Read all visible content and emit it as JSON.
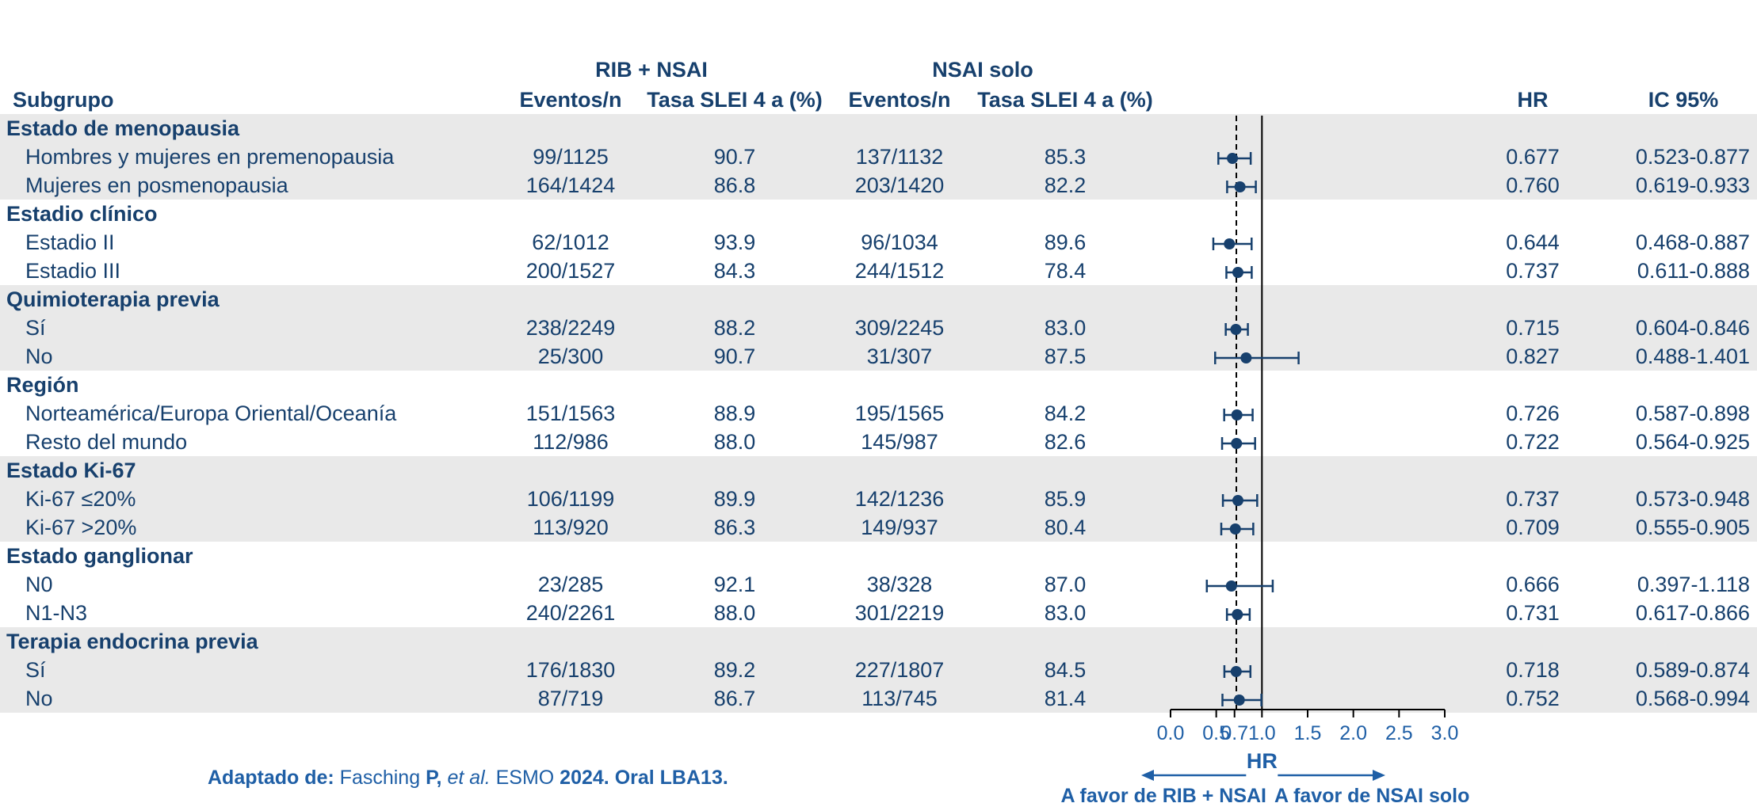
{
  "headers": {
    "group_rib": "RIB + NSAI",
    "group_nsai": "NSAI solo",
    "subgroup": "Subgrupo",
    "events_rib": "Eventos/n",
    "rate_rib": "Tasa SLEI 4 a (%)",
    "events_nsai": "Eventos/n",
    "rate_nsai": "Tasa SLEI 4 a (%)",
    "hr": "HR",
    "ci": "IC 95%"
  },
  "rows": [
    {
      "type": "group",
      "label": "Estado de menopausia"
    },
    {
      "type": "item",
      "label": "Hombres y mujeres en premenopausia",
      "ev_rib": "99/1125",
      "rate_rib": "90.7",
      "ev_nsai": "137/1132",
      "rate_nsai": "85.3",
      "hr": "0.677",
      "ci": "0.523-0.877"
    },
    {
      "type": "item",
      "label": "Mujeres en posmenopausia",
      "ev_rib": "164/1424",
      "rate_rib": "86.8",
      "ev_nsai": "203/1420",
      "rate_nsai": "82.2",
      "hr": "0.760",
      "ci": "0.619-0.933"
    },
    {
      "type": "group",
      "label": "Estadio clínico"
    },
    {
      "type": "item",
      "label": "Estadio II",
      "ev_rib": "62/1012",
      "rate_rib": "93.9",
      "ev_nsai": "96/1034",
      "rate_nsai": "89.6",
      "hr": "0.644",
      "ci": "0.468-0.887"
    },
    {
      "type": "item",
      "label": "Estadio III",
      "ev_rib": "200/1527",
      "rate_rib": "84.3",
      "ev_nsai": "244/1512",
      "rate_nsai": "78.4",
      "hr": "0.737",
      "ci": "0.611-0.888"
    },
    {
      "type": "group",
      "label": "Quimioterapia previa"
    },
    {
      "type": "item",
      "label": "Sí",
      "ev_rib": "238/2249",
      "rate_rib": "88.2",
      "ev_nsai": "309/2245",
      "rate_nsai": "83.0",
      "hr": "0.715",
      "ci": "0.604-0.846"
    },
    {
      "type": "item",
      "label": "No",
      "ev_rib": "25/300",
      "rate_rib": "90.7",
      "ev_nsai": "31/307",
      "rate_nsai": "87.5",
      "hr": "0.827",
      "ci": "0.488-1.401"
    },
    {
      "type": "group",
      "label": "Región"
    },
    {
      "type": "item",
      "label": "Norteamérica/Europa Oriental/Oceanía",
      "ev_rib": "151/1563",
      "rate_rib": "88.9",
      "ev_nsai": "195/1565",
      "rate_nsai": "84.2",
      "hr": "0.726",
      "ci": "0.587-0.898"
    },
    {
      "type": "item",
      "label": "Resto del mundo",
      "ev_rib": "112/986",
      "rate_rib": "88.0",
      "ev_nsai": "145/987",
      "rate_nsai": "82.6",
      "hr": "0.722",
      "ci": "0.564-0.925"
    },
    {
      "type": "group",
      "label": "Estado Ki-67"
    },
    {
      "type": "item",
      "label": "Ki-67 ≤20%",
      "ev_rib": "106/1199",
      "rate_rib": "89.9",
      "ev_nsai": "142/1236",
      "rate_nsai": "85.9",
      "hr": "0.737",
      "ci": "0.573-0.948"
    },
    {
      "type": "item",
      "label": "Ki-67 >20%",
      "ev_rib": "113/920",
      "rate_rib": "86.3",
      "ev_nsai": "149/937",
      "rate_nsai": "80.4",
      "hr": "0.709",
      "ci": "0.555-0.905"
    },
    {
      "type": "group",
      "label": "Estado ganglionar"
    },
    {
      "type": "item",
      "label": "N0",
      "ev_rib": "23/285",
      "rate_rib": "92.1",
      "ev_nsai": "38/328",
      "rate_nsai": "87.0",
      "hr": "0.666",
      "ci": "0.397-1.118"
    },
    {
      "type": "item",
      "label": "N1-N3",
      "ev_rib": "240/2261",
      "rate_rib": "88.0",
      "ev_nsai": "301/2219",
      "rate_nsai": "83.0",
      "hr": "0.731",
      "ci": "0.617-0.866"
    },
    {
      "type": "group",
      "label": "Terapia endocrina previa"
    },
    {
      "type": "item",
      "label": "Sí",
      "ev_rib": "176/1830",
      "rate_rib": "89.2",
      "ev_nsai": "227/1807",
      "rate_nsai": "84.5",
      "hr": "0.718",
      "ci": "0.589-0.874"
    },
    {
      "type": "item",
      "label": "No",
      "ev_rib": "87/719",
      "rate_rib": "86.7",
      "ev_nsai": "113/745",
      "rate_nsai": "81.4",
      "hr": "0.752",
      "ci": "0.568-0.994"
    }
  ],
  "chart_data": {
    "type": "forest",
    "x_ticks": [
      "0.0",
      "0.5",
      "0.7",
      "1.0",
      "1.5",
      "2.0",
      "2.5",
      "3.0"
    ],
    "xlim": [
      0,
      3
    ],
    "reference_line": 1.0,
    "overall_hr_line": 0.72,
    "xlabel": "HR",
    "favor_left": "A favor de RIB + NSAI",
    "favor_right": "A favor de NSAI solo",
    "series": [
      {
        "label": "Hombres y mujeres en premenopausia",
        "hr": 0.677,
        "lo": 0.523,
        "hi": 0.877
      },
      {
        "label": "Mujeres en posmenopausia",
        "hr": 0.76,
        "lo": 0.619,
        "hi": 0.933
      },
      {
        "label": "Estadio II",
        "hr": 0.644,
        "lo": 0.468,
        "hi": 0.887
      },
      {
        "label": "Estadio III",
        "hr": 0.737,
        "lo": 0.611,
        "hi": 0.888
      },
      {
        "label": "Sí",
        "hr": 0.715,
        "lo": 0.604,
        "hi": 0.846
      },
      {
        "label": "No",
        "hr": 0.827,
        "lo": 0.488,
        "hi": 1.401
      },
      {
        "label": "Norteamérica/Europa Oriental/Oceanía",
        "hr": 0.726,
        "lo": 0.587,
        "hi": 0.898
      },
      {
        "label": "Resto del mundo",
        "hr": 0.722,
        "lo": 0.564,
        "hi": 0.925
      },
      {
        "label": "Ki-67 ≤20%",
        "hr": 0.737,
        "lo": 0.573,
        "hi": 0.948
      },
      {
        "label": "Ki-67 >20%",
        "hr": 0.709,
        "lo": 0.555,
        "hi": 0.905
      },
      {
        "label": "N0",
        "hr": 0.666,
        "lo": 0.397,
        "hi": 1.118
      },
      {
        "label": "N1-N3",
        "hr": 0.731,
        "lo": 0.617,
        "hi": 0.866
      },
      {
        "label": "Sí",
        "hr": 0.718,
        "lo": 0.589,
        "hi": 0.874
      },
      {
        "label": "No",
        "hr": 0.752,
        "lo": 0.568,
        "hi": 0.994
      }
    ],
    "colors": {
      "marker": "#17406d",
      "axis": "#1f5fa6"
    }
  },
  "footer": {
    "prefix": "Adaptado de:",
    "author": "Fasching",
    "initial": "P,",
    "etal": "et al.",
    "venue": "ESMO",
    "year": "2024.",
    "oral": "Oral LBA13",
    "end": "."
  }
}
